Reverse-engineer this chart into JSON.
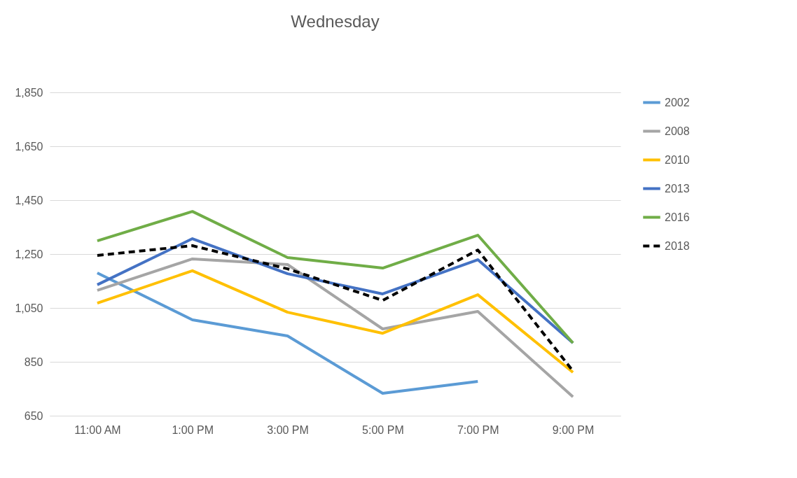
{
  "chart_data": {
    "type": "line",
    "title": "Wednesday",
    "categories": [
      "11:00 AM",
      "1:00 PM",
      "3:00 PM",
      "5:00 PM",
      "7:00 PM",
      "9:00 PM"
    ],
    "series": [
      {
        "name": "2002",
        "color": "#5b9bd5",
        "values": [
          1180,
          1006,
          946,
          733,
          777,
          null
        ]
      },
      {
        "name": "2008",
        "color": "#a5a5a5",
        "values": [
          1115,
          1232,
          1211,
          972,
          1037,
          720
        ]
      },
      {
        "name": "2010",
        "color": "#ffc000",
        "values": [
          1068,
          1188,
          1034,
          956,
          1099,
          811
        ]
      },
      {
        "name": "2013",
        "color": "#4472c4",
        "values": [
          1136,
          1307,
          1177,
          1102,
          1229,
          920
        ]
      },
      {
        "name": "2016",
        "color": "#70ad47",
        "values": [
          1299,
          1408,
          1237,
          1198,
          1320,
          920
        ]
      },
      {
        "name": "2018",
        "color": "#000000",
        "line_style": "dashed",
        "values": [
          1245,
          1281,
          1195,
          1078,
          1265,
          816
        ]
      }
    ],
    "ylim": [
      650,
      1850
    ],
    "yticks": [
      650,
      850,
      {
        "value": 1050,
        "label": "1,050"
      },
      {
        "value": 1250,
        "label": "1,250"
      },
      {
        "value": 1450,
        "label": "1,450"
      },
      {
        "value": 1650,
        "label": "1,650"
      },
      {
        "value": 1850,
        "label": "1,850"
      }
    ],
    "grid": "y",
    "legend": "right",
    "marker": "none",
    "line_style": "solid"
  }
}
